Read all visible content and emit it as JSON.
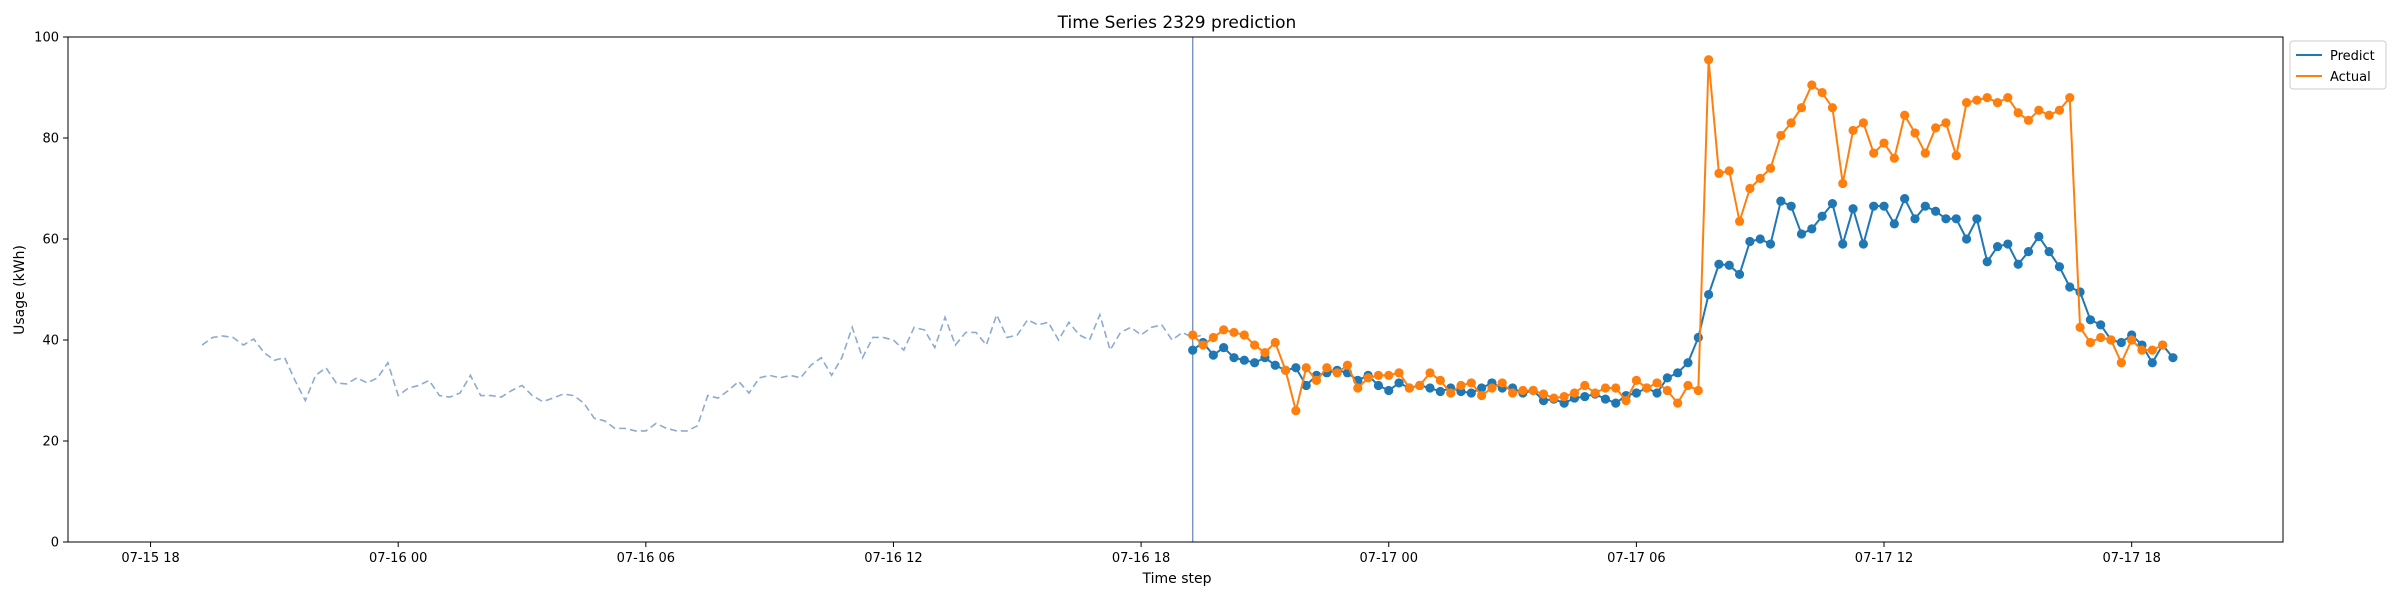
{
  "chart_data": {
    "type": "line",
    "title": "Time Series 2329 prediction",
    "xlabel": "Time step",
    "ylabel": "Usage (kWh)",
    "ylim": [
      0,
      100
    ],
    "yticks": [
      0,
      20,
      40,
      60,
      80,
      100
    ],
    "xlim": [
      "2024-07-15 16:00",
      "2024-07-17 21:40"
    ],
    "xticks": [
      {
        "t": "2024-07-15 18:00",
        "label": "07-15 18"
      },
      {
        "t": "2024-07-16 00:00",
        "label": "07-16 00"
      },
      {
        "t": "2024-07-16 06:00",
        "label": "07-16 06"
      },
      {
        "t": "2024-07-16 12:00",
        "label": "07-16 12"
      },
      {
        "t": "2024-07-16 18:00",
        "label": "07-16 18"
      },
      {
        "t": "2024-07-17 00:00",
        "label": "07-17 00"
      },
      {
        "t": "2024-07-17 06:00",
        "label": "07-17 06"
      },
      {
        "t": "2024-07-17 12:00",
        "label": "07-17 12"
      },
      {
        "t": "2024-07-17 18:00",
        "label": "07-17 18"
      }
    ],
    "grid": false,
    "legend_position": "top-right, outside plot",
    "forecast_start": "2024-07-16 19:15",
    "history": {
      "start": "2024-07-15 19:15",
      "interval_minutes": 15,
      "style": "dashed",
      "color": "#8eaad0",
      "values": [
        39,
        40.5,
        40.8,
        40.5,
        39,
        40.2,
        37.5,
        36,
        36.5,
        32,
        28,
        33,
        34.5,
        31.5,
        31.3,
        32.5,
        31.5,
        32.5,
        35.5,
        29,
        30.5,
        31,
        32,
        29,
        28.7,
        29.5,
        33,
        29,
        29,
        28.7,
        30,
        31,
        29,
        27.8,
        28.5,
        29.3,
        29,
        27.5,
        24.5,
        24,
        22.5,
        22.5,
        22,
        22,
        23.5,
        22.5,
        22,
        22,
        23,
        29,
        28.5,
        30,
        31.8,
        29.5,
        32.5,
        33,
        32.5,
        33,
        32.5,
        35,
        36.5,
        33,
        36.5,
        42.5,
        36.5,
        40.5,
        40.5,
        40,
        38,
        42.5,
        42,
        38.5,
        44.5,
        39,
        41.5,
        41.5,
        39,
        45,
        40.5,
        41,
        44,
        43,
        43.5,
        40,
        43.5,
        41,
        40,
        45,
        38,
        41.5,
        42.5,
        41,
        42.5,
        43,
        40,
        41.5,
        40.5,
        41
      ]
    },
    "forecast": {
      "start": "2024-07-16 19:15",
      "interval_minutes": 15,
      "series": [
        {
          "name": "Predict",
          "color": "#1f77b4",
          "values": [
            38,
            39.5,
            37,
            38.5,
            36.5,
            36,
            35.5,
            36.5,
            35,
            34,
            34.5,
            31,
            33,
            33.5,
            34,
            33.5,
            32,
            33,
            31,
            30,
            31.5,
            30.5,
            31,
            30.5,
            29.8,
            30.5,
            29.8,
            29.5,
            30.5,
            31.5,
            30.5,
            30.5,
            29.5,
            30,
            28,
            28.3,
            27.5,
            28.5,
            28.8,
            29.3,
            28.3,
            27.5,
            29,
            29.5,
            30.5,
            29.5,
            32.5,
            33.5,
            35.5,
            40.5,
            49,
            55,
            54.8,
            53,
            59.5,
            60,
            59,
            67.5,
            66.5,
            61,
            62,
            64.5,
            67,
            59,
            66,
            59,
            66.5,
            66.5,
            63,
            68,
            64,
            66.5,
            65.5,
            64,
            64,
            60,
            64,
            55.5,
            58.5,
            59,
            55,
            57.5,
            60.5,
            57.5,
            54.5,
            50.5,
            49.5,
            44,
            43,
            40,
            39.5,
            41,
            39,
            35.5,
            39,
            36.5
          ]
        },
        {
          "name": "Actual",
          "color": "#ff7f0e",
          "values": [
            41,
            39,
            40.5,
            42,
            41.5,
            41,
            39,
            37.5,
            39.5,
            34,
            26,
            34.5,
            32,
            34.5,
            33.5,
            35,
            30.5,
            32.5,
            33,
            33,
            33.5,
            30.5,
            31,
            33.5,
            32,
            29.5,
            31,
            31.5,
            29,
            30.5,
            31.5,
            29.5,
            30,
            30,
            29.3,
            28.5,
            28.8,
            29.5,
            31,
            29.5,
            30.5,
            30.5,
            28,
            32,
            30.5,
            31.5,
            30,
            27.5,
            31,
            30,
            95.5,
            73,
            73.5,
            63.5,
            70,
            72,
            74,
            80.5,
            83,
            86,
            90.5,
            89,
            86,
            71,
            81.5,
            83,
            77,
            79,
            76,
            84.5,
            81,
            77,
            82,
            83,
            76.5,
            87,
            87.5,
            88,
            87,
            88,
            85,
            83.5,
            85.5,
            84.5,
            85.5,
            88,
            42.5,
            39.5,
            40.5,
            40,
            35.5,
            40,
            38,
            38,
            39
          ]
        }
      ]
    }
  }
}
